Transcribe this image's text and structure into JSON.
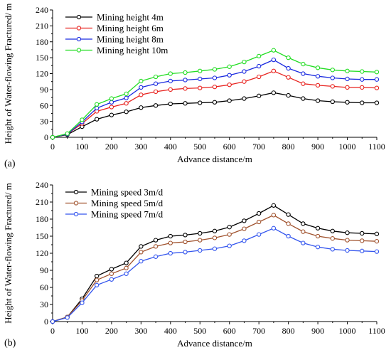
{
  "chart_data": [
    {
      "type": "line",
      "panel_label": "(a)",
      "xlabel": "Advance distance/m",
      "ylabel": "Height of Water-flowing Fractured/ m",
      "xlim": [
        0,
        1100
      ],
      "ylim": [
        0,
        240
      ],
      "x_ticks": [
        0,
        100,
        200,
        300,
        400,
        500,
        600,
        700,
        800,
        900,
        1000,
        1100
      ],
      "y_ticks": [
        0,
        30,
        60,
        90,
        120,
        150,
        180,
        210,
        240
      ],
      "grid": false,
      "legend_position": "top-left",
      "x": [
        0,
        50,
        100,
        150,
        200,
        250,
        300,
        350,
        400,
        450,
        500,
        550,
        600,
        650,
        700,
        750,
        800,
        850,
        900,
        950,
        1000,
        1050,
        1100
      ],
      "series": [
        {
          "name": "Mining height 4m",
          "color": "#000000",
          "values": [
            0,
            5,
            20,
            34,
            42,
            48,
            56,
            60,
            63,
            64,
            65,
            66,
            69,
            73,
            78,
            84,
            79,
            73,
            69,
            67,
            66,
            65,
            65
          ]
        },
        {
          "name": "Mining height 6m",
          "color": "#e8231f",
          "values": [
            0,
            6,
            26,
            49,
            57,
            64,
            80,
            86,
            90,
            92,
            93,
            95,
            99,
            105,
            114,
            125,
            113,
            101,
            98,
            96,
            94,
            94,
            93
          ]
        },
        {
          "name": "Mining height 8m",
          "color": "#1a2ae0",
          "values": [
            0,
            6,
            29,
            55,
            66,
            74,
            94,
            101,
            106,
            108,
            110,
            112,
            117,
            124,
            134,
            146,
            130,
            120,
            115,
            112,
            110,
            109,
            109
          ]
        },
        {
          "name": "Mining height 10m",
          "color": "#22dd22",
          "values": [
            0,
            7,
            33,
            62,
            73,
            82,
            106,
            114,
            120,
            122,
            125,
            128,
            133,
            142,
            153,
            164,
            150,
            138,
            131,
            127,
            125,
            124,
            123
          ]
        }
      ]
    },
    {
      "type": "line",
      "panel_label": "(b)",
      "xlabel": "Advance distance/m",
      "ylabel": "Height of Water-flowing Fractured/ m",
      "xlim": [
        0,
        1100
      ],
      "ylim": [
        0,
        240
      ],
      "x_ticks": [
        0,
        100,
        200,
        300,
        400,
        500,
        600,
        700,
        800,
        900,
        1000,
        1100
      ],
      "y_ticks": [
        0,
        30,
        60,
        90,
        120,
        150,
        180,
        210,
        240
      ],
      "grid": false,
      "legend_position": "top-left",
      "x": [
        0,
        50,
        100,
        150,
        200,
        250,
        300,
        350,
        400,
        450,
        500,
        550,
        600,
        650,
        700,
        750,
        800,
        850,
        900,
        950,
        1000,
        1050,
        1100
      ],
      "series": [
        {
          "name": "Mining speed 3m/d",
          "color": "#000000",
          "values": [
            0,
            8,
            40,
            80,
            92,
            103,
            132,
            143,
            150,
            152,
            155,
            159,
            166,
            177,
            190,
            204,
            188,
            172,
            164,
            159,
            156,
            155,
            154
          ]
        },
        {
          "name": "Mining speed 5m/d",
          "color": "#a0522d",
          "values": [
            0,
            8,
            37,
            73,
            84,
            94,
            122,
            132,
            138,
            140,
            143,
            147,
            153,
            163,
            175,
            187,
            172,
            158,
            150,
            146,
            143,
            142,
            141
          ]
        },
        {
          "name": "Mining speed 7m/d",
          "color": "#3355ee",
          "values": [
            0,
            7,
            33,
            64,
            74,
            84,
            106,
            114,
            120,
            122,
            125,
            128,
            133,
            142,
            153,
            164,
            150,
            138,
            131,
            127,
            125,
            124,
            123
          ]
        }
      ]
    }
  ]
}
